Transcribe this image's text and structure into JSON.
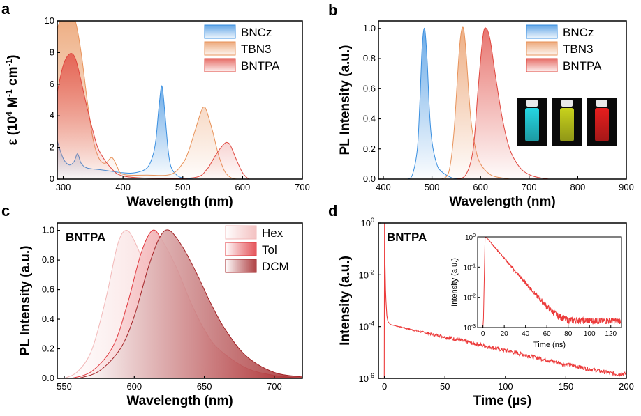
{
  "chart_data": [
    {
      "panel": "a",
      "type": "area",
      "xlabel": "Wavelength (nm)",
      "ylabel_prefix": "ε (10",
      "ylabel_exp1": "4",
      "ylabel_mid": " M",
      "ylabel_exp2": "-1",
      "ylabel_mid2": " cm",
      "ylabel_exp3": "-1",
      "ylabel_suffix": ")",
      "xlim": [
        290,
        700
      ],
      "ylim": [
        0,
        10
      ],
      "xticks": [
        "300",
        "400",
        "500",
        "600",
        "700"
      ],
      "yticks": [
        "0",
        "2",
        "4",
        "6",
        "8",
        "10"
      ],
      "legend_position": "top-right",
      "series": [
        {
          "name": "BNCz",
          "color": "#3a8fe0",
          "x": [
            290,
            300,
            310,
            318,
            324,
            330,
            340,
            360,
            380,
            400,
            420,
            440,
            450,
            455,
            460,
            465,
            470,
            475,
            480,
            490,
            500,
            520
          ],
          "y": [
            2.4,
            1.3,
            0.9,
            1.1,
            1.6,
            1.0,
            0.7,
            0.6,
            0.5,
            0.4,
            0.4,
            0.7,
            1.5,
            2.5,
            4.5,
            5.9,
            4.2,
            2.0,
            0.8,
            0.25,
            0.08,
            0.0
          ]
        },
        {
          "name": "TBN3",
          "color": "#e8935a",
          "x": [
            290,
            295,
            300,
            310,
            320,
            330,
            340,
            350,
            360,
            370,
            380,
            385,
            390,
            400,
            440,
            480,
            500,
            510,
            520,
            530,
            535,
            540,
            550,
            560,
            570,
            580,
            590
          ],
          "y": [
            9.5,
            10.0,
            10.0,
            10.0,
            10.0,
            8.0,
            5.0,
            2.5,
            1.3,
            1.0,
            1.35,
            1.2,
            0.8,
            0.3,
            0.25,
            0.3,
            1.0,
            1.8,
            3.0,
            4.2,
            4.55,
            4.3,
            3.0,
            1.5,
            0.5,
            0.1,
            0.0
          ]
        },
        {
          "name": "BNTPA",
          "color": "#e0473f",
          "x": [
            290,
            300,
            310,
            318,
            325,
            340,
            350,
            360,
            380,
            400,
            450,
            520,
            540,
            550,
            560,
            570,
            575,
            580,
            590,
            600,
            610
          ],
          "y": [
            5.5,
            7.2,
            7.9,
            7.8,
            7.0,
            4.5,
            3.0,
            1.8,
            0.7,
            0.2,
            0.05,
            0.1,
            0.6,
            1.2,
            1.8,
            2.25,
            2.3,
            2.1,
            1.2,
            0.4,
            0.0
          ]
        }
      ]
    },
    {
      "panel": "b",
      "type": "area",
      "xlabel": "Wavelength (nm)",
      "ylabel": "PL Intensity (a.u.)",
      "xlim": [
        390,
        900
      ],
      "ylim": [
        0,
        1.05
      ],
      "xticks": [
        "400",
        "500",
        "600",
        "700",
        "800",
        "900"
      ],
      "yticks": [
        "0.0",
        "0.2",
        "0.4",
        "0.6",
        "0.8",
        "1.0"
      ],
      "legend_position": "top-right",
      "series": [
        {
          "name": "BNCz",
          "color": "#3a8fe0",
          "x": [
            450,
            460,
            470,
            475,
            480,
            485,
            490,
            495,
            500,
            510,
            520,
            540,
            560
          ],
          "y": [
            0.0,
            0.03,
            0.2,
            0.5,
            0.88,
            1.0,
            0.8,
            0.45,
            0.25,
            0.1,
            0.05,
            0.01,
            0.0
          ]
        },
        {
          "name": "TBN3",
          "color": "#e8935a",
          "x": [
            520,
            535,
            545,
            555,
            560,
            565,
            570,
            580,
            590,
            600,
            620,
            640,
            660
          ],
          "y": [
            0.0,
            0.05,
            0.3,
            0.8,
            0.97,
            1.0,
            0.85,
            0.4,
            0.2,
            0.1,
            0.03,
            0.01,
            0.0
          ]
        },
        {
          "name": "BNTPA",
          "color": "#e0473f",
          "x": [
            550,
            570,
            585,
            595,
            605,
            612,
            620,
            630,
            645,
            660,
            680,
            700,
            720,
            740
          ],
          "y": [
            0.0,
            0.03,
            0.2,
            0.6,
            0.95,
            1.0,
            0.92,
            0.7,
            0.4,
            0.2,
            0.08,
            0.03,
            0.01,
            0.0
          ]
        }
      ],
      "inset_vials": [
        {
          "color": "#25d6e2"
        },
        {
          "color": "#c8d21c"
        },
        {
          "color": "#e61e1e"
        }
      ]
    },
    {
      "panel": "c",
      "type": "area",
      "annotation": "BNTPA",
      "xlabel": "Wavelength (nm)",
      "ylabel": "PL Intensity (a.u.)",
      "xlim": [
        545,
        720
      ],
      "ylim": [
        0,
        1.05
      ],
      "xticks": [
        "550",
        "600",
        "650",
        "700"
      ],
      "yticks": [
        "0.0",
        "0.2",
        "0.4",
        "0.6",
        "0.8",
        "1.0"
      ],
      "legend_position": "top-right",
      "series": [
        {
          "name": "Hex",
          "color": "#f2b8b8",
          "x": [
            550,
            560,
            570,
            580,
            588,
            594,
            600,
            610,
            620,
            630,
            640,
            660,
            680,
            700
          ],
          "y": [
            0.0,
            0.05,
            0.2,
            0.55,
            0.9,
            1.0,
            0.93,
            0.7,
            0.42,
            0.25,
            0.14,
            0.04,
            0.01,
            0.0
          ]
        },
        {
          "name": "Tol",
          "color": "#e0393f",
          "x": [
            555,
            570,
            585,
            595,
            605,
            613,
            620,
            630,
            640,
            650,
            660,
            680,
            700,
            720
          ],
          "y": [
            0.0,
            0.05,
            0.22,
            0.5,
            0.85,
            1.0,
            0.93,
            0.75,
            0.52,
            0.33,
            0.2,
            0.07,
            0.02,
            0.0
          ]
        },
        {
          "name": "DCM",
          "color": "#a22225",
          "x": [
            560,
            575,
            590,
            600,
            610,
            618,
            625,
            635,
            645,
            655,
            665,
            680,
            700,
            720
          ],
          "y": [
            0.0,
            0.05,
            0.2,
            0.42,
            0.75,
            0.95,
            1.0,
            0.88,
            0.7,
            0.5,
            0.33,
            0.15,
            0.04,
            0.01
          ]
        }
      ]
    },
    {
      "panel": "d",
      "type": "line",
      "annotation": "BNTPA",
      "xlabel": "Time (µs)",
      "ylabel": "Intensity (a.u.)",
      "yscale": "log",
      "xlim": [
        -5,
        200
      ],
      "ylim_exp": [
        -6,
        0
      ],
      "xticks": [
        "0",
        "50",
        "100",
        "150",
        "200"
      ],
      "ytick_base": "10",
      "yticks_exp": [
        "-6",
        "-4",
        "-2",
        "0"
      ],
      "series": [
        {
          "name": "",
          "color": "#ec3b3b",
          "x": [
            0,
            0.2,
            1,
            2,
            3,
            5,
            20,
            50,
            100,
            150,
            190
          ],
          "y": [
            1.0,
            0.1,
            0.0015,
            0.00025,
            0.00015,
            0.00012,
            8e-05,
            4e-05,
            1.2e-05,
            3.5e-06,
            1.5e-06
          ]
        }
      ],
      "inset": {
        "xlabel": "Time (ns)",
        "ylabel": "Intensity (a.u.)",
        "yscale": "log",
        "xlim": [
          -5,
          130
        ],
        "ylim_exp": [
          -3,
          0
        ],
        "xticks": [
          "0",
          "20",
          "40",
          "60",
          "80",
          "100",
          "120"
        ],
        "ytick_base": "10",
        "yticks_exp": [
          "-3",
          "-2",
          "-1",
          "0"
        ],
        "series": [
          {
            "name": "",
            "color": "#ec3b3b",
            "x": [
              0,
              2,
              4,
              10,
              20,
              30,
              40,
              50,
              60,
              70,
              80,
              100,
              130
            ],
            "y": [
              0.001,
              1.0,
              0.9,
              0.5,
              0.2,
              0.075,
              0.03,
              0.012,
              0.005,
              0.0025,
              0.0018,
              0.0017,
              0.0017
            ]
          }
        ]
      }
    }
  ],
  "panel_letters": {
    "a": "a",
    "b": "b",
    "c": "c",
    "d": "d"
  }
}
